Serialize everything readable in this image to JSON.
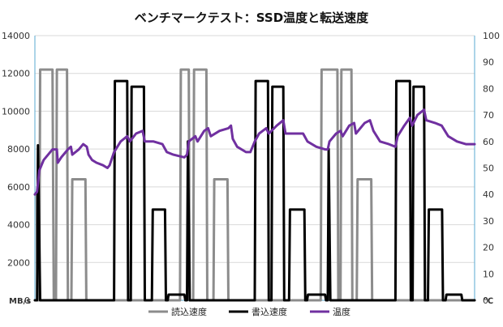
{
  "chart_data": {
    "type": "line",
    "title": "ベンチマークテスト：SSD温度と転送速度",
    "x": {
      "min": 0,
      "max": 100,
      "ticks": "none"
    },
    "y_left": {
      "label": "MB/s",
      "min": 0,
      "max": 14000,
      "ticks": [
        0,
        2000,
        4000,
        6000,
        8000,
        10000,
        12000,
        14000
      ]
    },
    "y_right": {
      "label": "℃",
      "min": 0,
      "max": 100,
      "ticks": [
        0,
        10,
        20,
        30,
        40,
        50,
        60,
        70,
        80,
        90,
        100
      ]
    },
    "grid": true,
    "legend_position": "bottom",
    "series": [
      {
        "name": "読込速度",
        "axis": "left",
        "color": "#8c8c8c",
        "points": [
          [
            0,
            5600
          ],
          [
            0.4,
            5600
          ],
          [
            0.6,
            0
          ],
          [
            1.0,
            0
          ],
          [
            1.2,
            12200
          ],
          [
            4.0,
            12200
          ],
          [
            4.3,
            0
          ],
          [
            4.8,
            0
          ],
          [
            5.0,
            12200
          ],
          [
            7.3,
            12200
          ],
          [
            7.5,
            0
          ],
          [
            8.3,
            0
          ],
          [
            8.5,
            6400
          ],
          [
            11.5,
            6400
          ],
          [
            11.7,
            0
          ],
          [
            16.5,
            0
          ],
          [
            16.7,
            0
          ],
          [
            33.0,
            0
          ],
          [
            33.2,
            12200
          ],
          [
            35.0,
            12200
          ],
          [
            35.2,
            0
          ],
          [
            36.0,
            0
          ],
          [
            36.2,
            12200
          ],
          [
            39.0,
            12200
          ],
          [
            39.2,
            0
          ],
          [
            40.6,
            0
          ],
          [
            40.8,
            6400
          ],
          [
            43.8,
            6400
          ],
          [
            44.0,
            0
          ],
          [
            49.0,
            0
          ],
          [
            49.2,
            0
          ],
          [
            65.0,
            0
          ],
          [
            65.2,
            12200
          ],
          [
            68.8,
            12200
          ],
          [
            69.0,
            0
          ],
          [
            69.5,
            0
          ],
          [
            69.7,
            12200
          ],
          [
            72.0,
            12200
          ],
          [
            72.2,
            0
          ],
          [
            73.2,
            0
          ],
          [
            73.4,
            6400
          ],
          [
            76.5,
            6400
          ],
          [
            76.7,
            0
          ],
          [
            100,
            0
          ]
        ]
      },
      {
        "name": "書込速度",
        "axis": "left",
        "color": "#000000",
        "points": [
          [
            0,
            0
          ],
          [
            0.5,
            0
          ],
          [
            0.7,
            8200
          ],
          [
            1.2,
            0
          ],
          [
            1.8,
            0
          ],
          [
            18.0,
            0
          ],
          [
            18.2,
            11600
          ],
          [
            21.0,
            11600
          ],
          [
            21.2,
            0
          ],
          [
            21.8,
            0
          ],
          [
            22.0,
            11300
          ],
          [
            24.8,
            11300
          ],
          [
            25.0,
            0
          ],
          [
            26.6,
            0
          ],
          [
            26.8,
            4800
          ],
          [
            29.6,
            4800
          ],
          [
            29.8,
            0
          ],
          [
            30.2,
            0
          ],
          [
            30.4,
            300
          ],
          [
            34.0,
            300
          ],
          [
            34.2,
            0
          ],
          [
            34.6,
            0
          ],
          [
            34.8,
            8400
          ],
          [
            35.2,
            0
          ],
          [
            48.0,
            0
          ],
          [
            50.0,
            0
          ],
          [
            50.2,
            11600
          ],
          [
            53.0,
            11600
          ],
          [
            53.2,
            0
          ],
          [
            53.8,
            0
          ],
          [
            54.0,
            11300
          ],
          [
            56.5,
            11300
          ],
          [
            56.7,
            0
          ],
          [
            57.8,
            0
          ],
          [
            58.0,
            4800
          ],
          [
            61.3,
            4800
          ],
          [
            61.5,
            0
          ],
          [
            61.9,
            0
          ],
          [
            62.1,
            300
          ],
          [
            66.0,
            300
          ],
          [
            66.2,
            0
          ],
          [
            66.6,
            0
          ],
          [
            66.8,
            8000
          ],
          [
            67.2,
            0
          ],
          [
            82.0,
            0
          ],
          [
            82.2,
            11600
          ],
          [
            85.3,
            11600
          ],
          [
            85.5,
            0
          ],
          [
            85.9,
            0
          ],
          [
            86.1,
            11300
          ],
          [
            88.5,
            11300
          ],
          [
            88.7,
            0
          ],
          [
            89.4,
            0
          ],
          [
            89.6,
            4800
          ],
          [
            92.6,
            4800
          ],
          [
            92.8,
            0
          ],
          [
            93.4,
            0
          ],
          [
            93.6,
            300
          ],
          [
            97.0,
            300
          ],
          [
            97.2,
            0
          ],
          [
            100,
            0
          ]
        ]
      },
      {
        "name": "温度",
        "axis": "right",
        "color": "#7030a0",
        "points": [
          [
            0,
            40
          ],
          [
            0.5,
            41
          ],
          [
            1.0,
            49
          ],
          [
            2.0,
            53
          ],
          [
            3.0,
            55
          ],
          [
            4.0,
            57
          ],
          [
            5.0,
            57
          ],
          [
            5.2,
            52
          ],
          [
            6.0,
            54
          ],
          [
            7.5,
            57
          ],
          [
            8.2,
            58
          ],
          [
            8.5,
            55
          ],
          [
            10.0,
            57
          ],
          [
            11.0,
            59
          ],
          [
            11.8,
            58
          ],
          [
            12.2,
            55
          ],
          [
            13.0,
            53
          ],
          [
            14.0,
            52
          ],
          [
            15.5,
            51
          ],
          [
            16.5,
            50
          ],
          [
            17.0,
            51
          ],
          [
            18.0,
            56
          ],
          [
            19.5,
            60
          ],
          [
            21.0,
            62
          ],
          [
            21.6,
            60
          ],
          [
            23.0,
            63
          ],
          [
            24.5,
            64
          ],
          [
            25.0,
            60
          ],
          [
            27.0,
            60
          ],
          [
            29.0,
            59
          ],
          [
            30.0,
            56
          ],
          [
            31.5,
            55
          ],
          [
            34.0,
            54
          ],
          [
            34.6,
            55
          ],
          [
            35.0,
            60
          ],
          [
            36.5,
            62
          ],
          [
            37.0,
            60
          ],
          [
            38.5,
            64
          ],
          [
            39.4,
            65
          ],
          [
            40.0,
            62
          ],
          [
            42.0,
            64
          ],
          [
            44.0,
            65
          ],
          [
            44.6,
            66
          ],
          [
            45.0,
            61
          ],
          [
            46.0,
            58
          ],
          [
            48.0,
            56
          ],
          [
            49.0,
            56
          ],
          [
            50.0,
            60
          ],
          [
            51.0,
            63
          ],
          [
            52.6,
            65
          ],
          [
            53.2,
            63
          ],
          [
            55.0,
            66
          ],
          [
            56.5,
            68
          ],
          [
            57.0,
            63
          ],
          [
            59.0,
            63
          ],
          [
            61.0,
            63
          ],
          [
            62.0,
            60
          ],
          [
            64.0,
            58
          ],
          [
            66.0,
            57
          ],
          [
            66.6,
            57
          ],
          [
            67.0,
            60
          ],
          [
            68.5,
            63
          ],
          [
            69.5,
            64
          ],
          [
            70.0,
            62
          ],
          [
            71.5,
            66
          ],
          [
            72.6,
            67
          ],
          [
            73.0,
            63
          ],
          [
            75.0,
            67
          ],
          [
            76.2,
            68
          ],
          [
            77.0,
            64
          ],
          [
            78.5,
            60
          ],
          [
            80.5,
            59
          ],
          [
            82.0,
            58
          ],
          [
            82.5,
            62
          ],
          [
            84.0,
            66
          ],
          [
            85.3,
            69
          ],
          [
            85.8,
            66
          ],
          [
            87.0,
            70
          ],
          [
            88.5,
            72
          ],
          [
            89.0,
            68
          ],
          [
            91.0,
            67
          ],
          [
            92.5,
            66
          ],
          [
            94.0,
            62
          ],
          [
            96.0,
            60
          ],
          [
            98.0,
            59
          ],
          [
            100,
            59
          ]
        ]
      }
    ]
  }
}
